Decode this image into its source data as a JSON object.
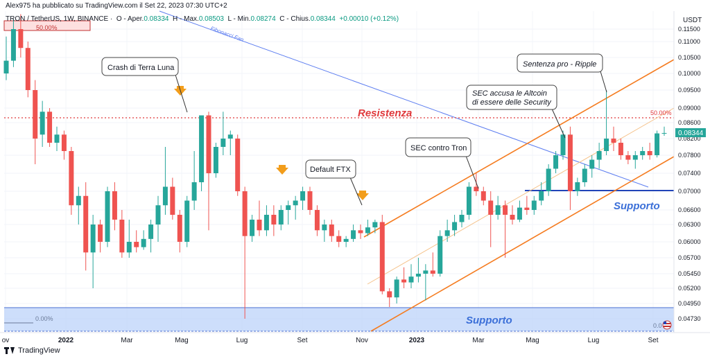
{
  "publisher_line": "Alex975 ha pubblicato su TradingView.com il Set 22, 2023 07:30 UTC+2",
  "legend": {
    "symbol": "TRON / TetherUS, 1W, BINANCE",
    "o_label": "O - Aper.",
    "o_value": "0.08334",
    "h_label": "H - Max.",
    "h_value": "0.08503",
    "l_label": "L - Min.",
    "l_value": "0.08274",
    "c_label": "C - Chius.",
    "c_value": "0.08344",
    "change": "+0.00010 (+0.12%)"
  },
  "footer_brand": "TradingView",
  "colors": {
    "up": "#26a69a",
    "down": "#ef5350",
    "channel": "#f57c20",
    "fan": "#5b7cf0",
    "resist": "#e0383b",
    "support_text": "#3b6fd8",
    "support_line": "#2144b8",
    "zone": "#bcd3f9"
  },
  "chart_data": {
    "type": "candlestick",
    "currency": "USDT",
    "y_ticks": [
      "0.11500",
      "0.11000",
      "0.10500",
      "0.10000",
      "0.09500",
      "0.09000",
      "0.08600",
      "0.08200",
      "0.07800",
      "0.07400",
      "0.07000",
      "0.06600",
      "0.06300",
      "0.06000",
      "0.05700",
      "0.05450",
      "0.05200",
      "0.04950",
      "0.04730"
    ],
    "x_ticks": [
      "ov",
      "2022",
      "Mar",
      "Mag",
      "Lug",
      "Set",
      "Nov",
      "2023",
      "Mar",
      "Mag",
      "Lug",
      "Set"
    ],
    "last_price": "0.08344",
    "candles": [
      {
        "o": 0.1,
        "h": 0.112,
        "l": 0.098,
        "c": 0.104
      },
      {
        "o": 0.104,
        "h": 0.119,
        "l": 0.102,
        "c": 0.115
      },
      {
        "o": 0.115,
        "h": 0.121,
        "l": 0.105,
        "c": 0.108
      },
      {
        "o": 0.108,
        "h": 0.11,
        "l": 0.093,
        "c": 0.095
      },
      {
        "o": 0.095,
        "h": 0.098,
        "l": 0.076,
        "c": 0.082
      },
      {
        "o": 0.083,
        "h": 0.092,
        "l": 0.08,
        "c": 0.089
      },
      {
        "o": 0.089,
        "h": 0.09,
        "l": 0.08,
        "c": 0.081
      },
      {
        "o": 0.081,
        "h": 0.085,
        "l": 0.079,
        "c": 0.083
      },
      {
        "o": 0.083,
        "h": 0.084,
        "l": 0.077,
        "c": 0.079
      },
      {
        "o": 0.079,
        "h": 0.08,
        "l": 0.065,
        "c": 0.067
      },
      {
        "o": 0.067,
        "h": 0.071,
        "l": 0.063,
        "c": 0.069
      },
      {
        "o": 0.069,
        "h": 0.072,
        "l": 0.055,
        "c": 0.058
      },
      {
        "o": 0.058,
        "h": 0.065,
        "l": 0.052,
        "c": 0.063
      },
      {
        "o": 0.063,
        "h": 0.064,
        "l": 0.058,
        "c": 0.06
      },
      {
        "o": 0.06,
        "h": 0.071,
        "l": 0.059,
        "c": 0.07
      },
      {
        "o": 0.07,
        "h": 0.072,
        "l": 0.062,
        "c": 0.064
      },
      {
        "o": 0.064,
        "h": 0.066,
        "l": 0.057,
        "c": 0.058
      },
      {
        "o": 0.058,
        "h": 0.064,
        "l": 0.057,
        "c": 0.06
      },
      {
        "o": 0.06,
        "h": 0.062,
        "l": 0.058,
        "c": 0.059
      },
      {
        "o": 0.059,
        "h": 0.062,
        "l": 0.0585,
        "c": 0.0605
      },
      {
        "o": 0.0605,
        "h": 0.064,
        "l": 0.058,
        "c": 0.063
      },
      {
        "o": 0.063,
        "h": 0.069,
        "l": 0.06,
        "c": 0.067
      },
      {
        "o": 0.067,
        "h": 0.08,
        "l": 0.065,
        "c": 0.071
      },
      {
        "o": 0.071,
        "h": 0.073,
        "l": 0.064,
        "c": 0.065
      },
      {
        "o": 0.065,
        "h": 0.066,
        "l": 0.058,
        "c": 0.06
      },
      {
        "o": 0.06,
        "h": 0.069,
        "l": 0.059,
        "c": 0.068
      },
      {
        "o": 0.068,
        "h": 0.079,
        "l": 0.066,
        "c": 0.072
      },
      {
        "o": 0.072,
        "h": 0.088,
        "l": 0.07,
        "c": 0.088
      },
      {
        "o": 0.088,
        "h": 0.089,
        "l": 0.062,
        "c": 0.074
      },
      {
        "o": 0.074,
        "h": 0.081,
        "l": 0.073,
        "c": 0.08
      },
      {
        "o": 0.08,
        "h": 0.089,
        "l": 0.078,
        "c": 0.082
      },
      {
        "o": 0.082,
        "h": 0.084,
        "l": 0.078,
        "c": 0.083
      },
      {
        "o": 0.082,
        "h": 0.083,
        "l": 0.069,
        "c": 0.07
      },
      {
        "o": 0.07,
        "h": 0.071,
        "l": 0.0473,
        "c": 0.061
      },
      {
        "o": 0.061,
        "h": 0.065,
        "l": 0.06,
        "c": 0.064
      },
      {
        "o": 0.064,
        "h": 0.068,
        "l": 0.061,
        "c": 0.062
      },
      {
        "o": 0.062,
        "h": 0.067,
        "l": 0.061,
        "c": 0.065
      },
      {
        "o": 0.065,
        "h": 0.067,
        "l": 0.061,
        "c": 0.063
      },
      {
        "o": 0.063,
        "h": 0.067,
        "l": 0.062,
        "c": 0.066
      },
      {
        "o": 0.066,
        "h": 0.068,
        "l": 0.063,
        "c": 0.067
      },
      {
        "o": 0.067,
        "h": 0.069,
        "l": 0.064,
        "c": 0.068
      },
      {
        "o": 0.068,
        "h": 0.071,
        "l": 0.066,
        "c": 0.07
      },
      {
        "o": 0.07,
        "h": 0.071,
        "l": 0.065,
        "c": 0.066
      },
      {
        "o": 0.066,
        "h": 0.067,
        "l": 0.061,
        "c": 0.062
      },
      {
        "o": 0.062,
        "h": 0.064,
        "l": 0.06,
        "c": 0.063
      },
      {
        "o": 0.063,
        "h": 0.064,
        "l": 0.06,
        "c": 0.061
      },
      {
        "o": 0.061,
        "h": 0.062,
        "l": 0.059,
        "c": 0.06
      },
      {
        "o": 0.06,
        "h": 0.061,
        "l": 0.059,
        "c": 0.0605
      },
      {
        "o": 0.0605,
        "h": 0.063,
        "l": 0.06,
        "c": 0.062
      },
      {
        "o": 0.062,
        "h": 0.063,
        "l": 0.0605,
        "c": 0.0615
      },
      {
        "o": 0.0615,
        "h": 0.064,
        "l": 0.061,
        "c": 0.0625
      },
      {
        "o": 0.0625,
        "h": 0.064,
        "l": 0.0615,
        "c": 0.0635
      },
      {
        "o": 0.0635,
        "h": 0.065,
        "l": 0.051,
        "c": 0.0515
      },
      {
        "o": 0.0515,
        "h": 0.052,
        "l": 0.049,
        "c": 0.0505
      },
      {
        "o": 0.0505,
        "h": 0.054,
        "l": 0.0495,
        "c": 0.0535
      },
      {
        "o": 0.0535,
        "h": 0.0555,
        "l": 0.052,
        "c": 0.053
      },
      {
        "o": 0.053,
        "h": 0.056,
        "l": 0.052,
        "c": 0.054
      },
      {
        "o": 0.054,
        "h": 0.057,
        "l": 0.053,
        "c": 0.0545
      },
      {
        "o": 0.0545,
        "h": 0.056,
        "l": 0.05,
        "c": 0.055
      },
      {
        "o": 0.055,
        "h": 0.058,
        "l": 0.054,
        "c": 0.0545
      },
      {
        "o": 0.0545,
        "h": 0.062,
        "l": 0.054,
        "c": 0.061
      },
      {
        "o": 0.061,
        "h": 0.064,
        "l": 0.06,
        "c": 0.062
      },
      {
        "o": 0.062,
        "h": 0.065,
        "l": 0.061,
        "c": 0.0635
      },
      {
        "o": 0.0635,
        "h": 0.066,
        "l": 0.0625,
        "c": 0.065
      },
      {
        "o": 0.065,
        "h": 0.072,
        "l": 0.064,
        "c": 0.071
      },
      {
        "o": 0.071,
        "h": 0.074,
        "l": 0.069,
        "c": 0.07
      },
      {
        "o": 0.07,
        "h": 0.071,
        "l": 0.067,
        "c": 0.068
      },
      {
        "o": 0.068,
        "h": 0.07,
        "l": 0.059,
        "c": 0.065
      },
      {
        "o": 0.065,
        "h": 0.069,
        "l": 0.064,
        "c": 0.067
      },
      {
        "o": 0.067,
        "h": 0.068,
        "l": 0.057,
        "c": 0.065
      },
      {
        "o": 0.065,
        "h": 0.067,
        "l": 0.063,
        "c": 0.064
      },
      {
        "o": 0.064,
        "h": 0.068,
        "l": 0.0635,
        "c": 0.0665
      },
      {
        "o": 0.0665,
        "h": 0.069,
        "l": 0.065,
        "c": 0.066
      },
      {
        "o": 0.066,
        "h": 0.069,
        "l": 0.065,
        "c": 0.068
      },
      {
        "o": 0.068,
        "h": 0.072,
        "l": 0.067,
        "c": 0.07
      },
      {
        "o": 0.07,
        "h": 0.076,
        "l": 0.069,
        "c": 0.075
      },
      {
        "o": 0.075,
        "h": 0.079,
        "l": 0.074,
        "c": 0.078
      },
      {
        "o": 0.078,
        "h": 0.084,
        "l": 0.077,
        "c": 0.083
      },
      {
        "o": 0.083,
        "h": 0.085,
        "l": 0.066,
        "c": 0.07
      },
      {
        "o": 0.07,
        "h": 0.073,
        "l": 0.069,
        "c": 0.072
      },
      {
        "o": 0.072,
        "h": 0.076,
        "l": 0.071,
        "c": 0.075
      },
      {
        "o": 0.075,
        "h": 0.078,
        "l": 0.073,
        "c": 0.077
      },
      {
        "o": 0.077,
        "h": 0.081,
        "l": 0.075,
        "c": 0.079
      },
      {
        "o": 0.079,
        "h": 0.095,
        "l": 0.078,
        "c": 0.082
      },
      {
        "o": 0.082,
        "h": 0.085,
        "l": 0.079,
        "c": 0.081
      },
      {
        "o": 0.081,
        "h": 0.082,
        "l": 0.077,
        "c": 0.078
      },
      {
        "o": 0.078,
        "h": 0.079,
        "l": 0.076,
        "c": 0.077
      },
      {
        "o": 0.077,
        "h": 0.079,
        "l": 0.075,
        "c": 0.078
      },
      {
        "o": 0.078,
        "h": 0.08,
        "l": 0.077,
        "c": 0.079
      },
      {
        "o": 0.079,
        "h": 0.081,
        "l": 0.077,
        "c": 0.078
      },
      {
        "o": 0.078,
        "h": 0.084,
        "l": 0.0775,
        "c": 0.0833
      },
      {
        "o": 0.0833,
        "h": 0.085,
        "l": 0.0827,
        "c": 0.0834
      }
    ],
    "annotations": {
      "terra": "Crash di Terra Luna",
      "ftx": "Default FTX",
      "sec_tron": "SEC contro Tron",
      "sec_altcoin_1": "SEC accusa le Altcoin",
      "sec_altcoin_2": "di essere delle Security",
      "ripple": "Sentenza pro - Ripple",
      "resistenza": "Resistenza",
      "supporto_upper": "Supporto",
      "supporto_lower": "Supporto",
      "fib_fan": "Fibonacci Fan",
      "fib_50_top": "50.00%",
      "fib_50_right": "50.00%",
      "fib_0_left": "0.00%",
      "fib_0_right": "0.0"
    }
  }
}
